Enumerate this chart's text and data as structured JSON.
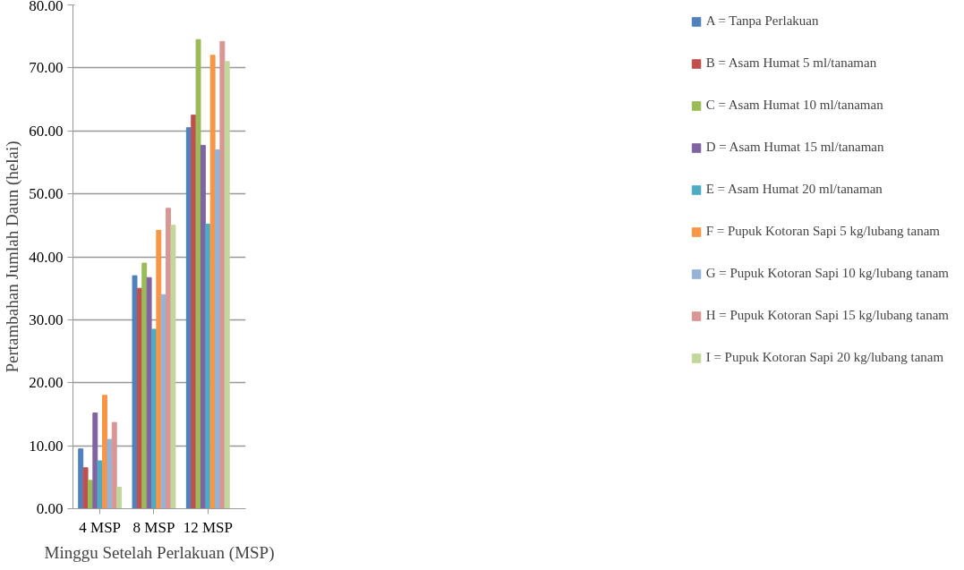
{
  "chart_data": {
    "type": "bar",
    "xlabel": "Minggu Setelah Perlakuan (MSP)",
    "ylabel": "Pertambahan Jumlah Daun (helai)",
    "categories": [
      "4 MSP",
      "8 MSP",
      "12 MSP"
    ],
    "series": [
      {
        "name": "A = Tanpa Perlakuan",
        "color": "#4f81bd",
        "values": [
          9.5,
          37.0,
          60.5
        ]
      },
      {
        "name": "B = Asam Humat 5 ml/tanaman",
        "color": "#c0504d",
        "values": [
          6.5,
          35.0,
          62.5
        ]
      },
      {
        "name": "C = Asam Humat 10 ml/tanaman",
        "color": "#9bbb59",
        "values": [
          4.5,
          39.0,
          74.5
        ]
      },
      {
        "name": "D = Asam Humat 15 ml/tanaman",
        "color": "#8064a2",
        "values": [
          15.2,
          36.7,
          57.7
        ]
      },
      {
        "name": "E = Asam Humat 20 ml/tanaman",
        "color": "#4bacc6",
        "values": [
          7.6,
          28.5,
          45.2
        ]
      },
      {
        "name": "F = Pupuk Kotoran Sapi 5 kg/lubang tanam",
        "color": "#f79646",
        "values": [
          18.0,
          44.2,
          72.0
        ]
      },
      {
        "name": "G = Pupuk Kotoran Sapi 10 kg/lubang tanam",
        "color": "#95b3d7",
        "values": [
          11.0,
          34.0,
          57.0
        ]
      },
      {
        "name": "H = Pupuk Kotoran Sapi 15 kg/lubang tanam",
        "color": "#d99694",
        "values": [
          13.7,
          47.7,
          74.2
        ]
      },
      {
        "name": "I = Pupuk Kotoran Sapi 20 kg/lubang tanam",
        "color": "#c3d69b",
        "values": [
          3.4,
          45.0,
          71.0
        ]
      }
    ],
    "ylim": [
      0,
      80
    ],
    "yticks": [
      {
        "value": 0,
        "label": "0.00"
      },
      {
        "value": 10,
        "label": "10.00"
      },
      {
        "value": 20,
        "label": "20.00"
      },
      {
        "value": 30,
        "label": "30.00"
      },
      {
        "value": 40,
        "label": "40.00"
      },
      {
        "value": 50,
        "label": "50.00"
      },
      {
        "value": 60,
        "label": "60.00"
      },
      {
        "value": 70,
        "label": "70.00"
      },
      {
        "value": 80,
        "label": "80.00"
      }
    ],
    "grid": "y",
    "legend": "right"
  }
}
